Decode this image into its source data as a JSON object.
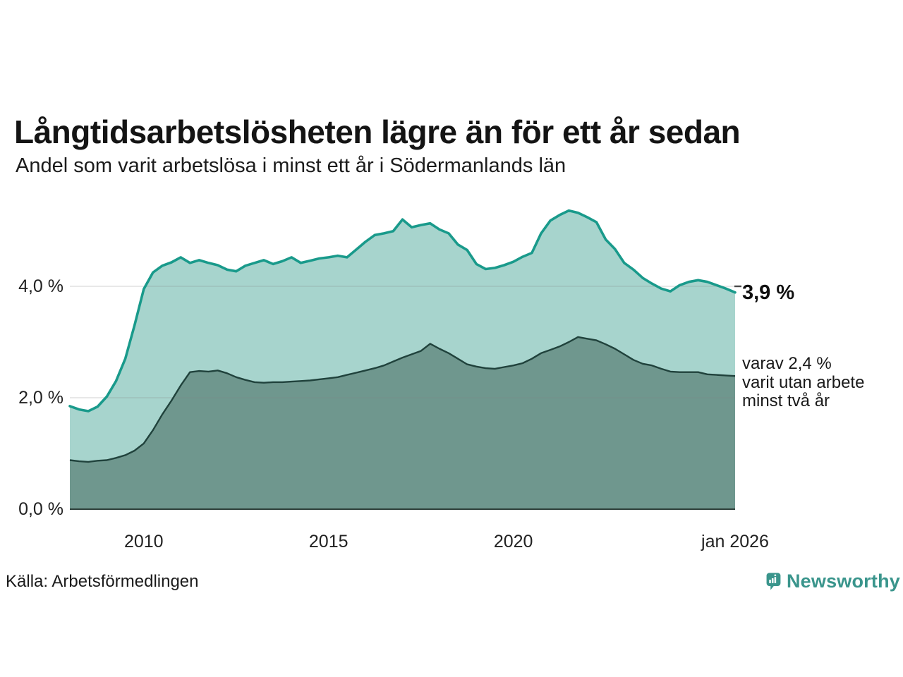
{
  "header": {
    "title": "Långtidsarbetslösheten lägre än för ett år sedan",
    "subtitle": "Andel som varit arbetslösa i minst ett år i Södermanlands län"
  },
  "chart_data": {
    "type": "area",
    "title": "Långtidsarbetslösheten lägre än för ett år sedan",
    "subtitle": "Andel som varit arbetslösa i minst ett år i Södermanlands län",
    "xlabel": "",
    "ylabel": "",
    "unit": "%",
    "ylim": [
      0,
      5.6
    ],
    "grid": "horizontal",
    "x": {
      "start": 2008.0,
      "step": 0.25,
      "count": 73
    },
    "x_ticks": [
      {
        "value": 2010,
        "label": "2010"
      },
      {
        "value": 2015,
        "label": "2015"
      },
      {
        "value": 2020,
        "label": "2020"
      },
      {
        "value": 2026,
        "label": "jan 2026"
      }
    ],
    "y_ticks": [
      {
        "value": 0,
        "label": "0,0 %"
      },
      {
        "value": 2,
        "label": "2,0 %"
      },
      {
        "value": 4,
        "label": "4,0 %"
      }
    ],
    "series": [
      {
        "name": "Arbetslösa minst ett år",
        "line_color": "#199a8b",
        "fill_color": "#a7d4cd",
        "values": [
          1.85,
          1.79,
          1.76,
          1.84,
          2.02,
          2.3,
          2.7,
          3.3,
          3.95,
          4.25,
          4.37,
          4.43,
          4.52,
          4.42,
          4.47,
          4.42,
          4.38,
          4.3,
          4.27,
          4.37,
          4.42,
          4.47,
          4.4,
          4.45,
          4.52,
          4.42,
          4.46,
          4.5,
          4.52,
          4.55,
          4.52,
          4.66,
          4.8,
          4.92,
          4.95,
          4.99,
          5.2,
          5.06,
          5.1,
          5.13,
          5.02,
          4.95,
          4.75,
          4.65,
          4.4,
          4.31,
          4.33,
          4.38,
          4.44,
          4.53,
          4.6,
          4.95,
          5.18,
          5.28,
          5.36,
          5.32,
          5.24,
          5.15,
          4.84,
          4.67,
          4.42,
          4.3,
          4.15,
          4.05,
          3.96,
          3.91,
          4.02,
          4.08,
          4.11,
          4.08,
          4.02,
          3.96,
          3.89
        ]
      },
      {
        "name": "Arbetslösa minst två år",
        "line_color": "#20423c",
        "fill_color": "#6f978e",
        "values": [
          0.88,
          0.86,
          0.85,
          0.87,
          0.88,
          0.92,
          0.97,
          1.05,
          1.18,
          1.42,
          1.7,
          1.95,
          2.22,
          2.46,
          2.48,
          2.47,
          2.49,
          2.44,
          2.37,
          2.32,
          2.28,
          2.27,
          2.28,
          2.28,
          2.29,
          2.3,
          2.31,
          2.33,
          2.35,
          2.37,
          2.41,
          2.45,
          2.49,
          2.53,
          2.58,
          2.65,
          2.72,
          2.78,
          2.84,
          2.97,
          2.88,
          2.8,
          2.7,
          2.6,
          2.56,
          2.53,
          2.52,
          2.55,
          2.58,
          2.62,
          2.7,
          2.8,
          2.86,
          2.92,
          3.0,
          3.09,
          3.06,
          3.03,
          2.96,
          2.88,
          2.78,
          2.68,
          2.61,
          2.58,
          2.52,
          2.47,
          2.46,
          2.46,
          2.46,
          2.42,
          2.41,
          2.4,
          2.39
        ]
      }
    ],
    "annotations": {
      "latest_total": "3,9 %",
      "secondary": [
        "varav 2,4 %",
        "varit utan arbete",
        "minst två år"
      ]
    },
    "legend": "none"
  },
  "footer": {
    "source": "Källa: Arbetsförmedlingen",
    "brand": "Newsworthy"
  },
  "colors": {
    "accent_teal": "#199a8b",
    "light_fill": "#a7d4cd",
    "dark_fill": "#6f978e",
    "dark_line": "#20423c",
    "brand_teal": "#3a958c",
    "axis": "#2e3f3a"
  }
}
